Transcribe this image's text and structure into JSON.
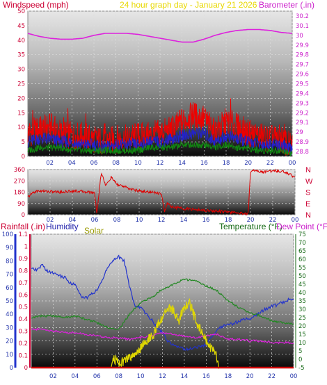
{
  "header": {
    "wind_label": "Windspeed (mph)",
    "title": "24 hour graph day - January 21 2026",
    "baro_label": "Barometer (.in)"
  },
  "colors": {
    "wind": "#ee0000",
    "gust": "#ff2020",
    "wind_avg": "#2222cc",
    "wind_low": "#118811",
    "barometer": "#dd22dd",
    "title": "#e8d800",
    "direction": "#dd0000",
    "rain": "#cc0000",
    "humidity": "#2233cc",
    "solar": "#e0d800",
    "temperature": "#228822",
    "dewpoint": "#dd22dd",
    "left_axis_red": "#cc0033",
    "right_axis_green": "#116611"
  },
  "bottom_labels": {
    "rain": "Rainfall (.in)",
    "humidity": "Humidity",
    "solar": "Solar",
    "temp": "Temperature (°F)",
    "dew": "Dew Point (°F)"
  },
  "chart_data": [
    {
      "type": "line",
      "panel": "wind-barometer",
      "x_ticks": [
        "02",
        "04",
        "06",
        "08",
        "10",
        "12",
        "14",
        "16",
        "18",
        "20",
        "22",
        "00"
      ],
      "y_left": {
        "label": "Windspeed (mph)",
        "ticks": [
          0,
          5,
          10,
          15,
          20,
          25,
          30,
          35,
          40,
          45,
          50
        ],
        "lim": [
          0,
          50
        ]
      },
      "y_right": {
        "label": "Barometer (.in)",
        "ticks": [
          "28.8",
          "28.9",
          "29",
          "29.1",
          "29.2",
          "29.3",
          "29.4",
          "29.5",
          "29.6",
          "29.7",
          "29.8",
          "29.9",
          "30",
          "30.1",
          "30.2"
        ],
        "lim": [
          28.75,
          30.25
        ]
      },
      "series": [
        {
          "name": "Windspeed (mph)",
          "axis": "left",
          "x": [
            0,
            1,
            2,
            3,
            4,
            5,
            6,
            7,
            8,
            9,
            10,
            11,
            12,
            13,
            14,
            15,
            16,
            17,
            18,
            19,
            20,
            21,
            22,
            23,
            24
          ],
          "y": [
            8,
            9,
            10,
            8,
            7,
            7,
            6,
            5,
            6,
            6,
            7,
            7,
            8,
            9,
            12,
            14,
            13,
            8,
            12,
            10,
            8,
            7,
            6,
            6,
            3
          ]
        },
        {
          "axis": "left",
          "x": [
            0,
            1,
            2,
            3,
            4,
            5,
            6,
            7,
            8,
            9,
            10,
            11,
            12,
            13,
            14,
            15,
            16,
            17,
            18,
            19,
            20,
            21,
            22,
            23,
            24
          ],
          "y": [
            5,
            6,
            6,
            5,
            5,
            4,
            4,
            3,
            4,
            4,
            4,
            5,
            5,
            6,
            7,
            8,
            8,
            5,
            7,
            6,
            5,
            4,
            4,
            4,
            2
          ]
        },
        {
          "axis": "left",
          "x": [
            0,
            1,
            2,
            3,
            4,
            5,
            6,
            7,
            8,
            9,
            10,
            11,
            12,
            13,
            14,
            15,
            16,
            17,
            18,
            19,
            20,
            21,
            22,
            23,
            24
          ],
          "y": [
            2,
            3,
            3,
            3,
            2,
            2,
            2,
            2,
            2,
            2,
            2,
            3,
            3,
            3,
            4,
            4,
            4,
            3,
            4,
            3,
            3,
            2,
            2,
            2,
            1
          ]
        },
        {
          "name": "Barometer (.in)",
          "axis": "right",
          "x": [
            0,
            1,
            2,
            3,
            4,
            5,
            6,
            7,
            8,
            9,
            10,
            11,
            12,
            13,
            14,
            15,
            16,
            17,
            18,
            19,
            20,
            21,
            22,
            23,
            24
          ],
          "y": [
            30.02,
            29.99,
            29.97,
            29.96,
            29.96,
            29.97,
            30.0,
            30.02,
            30.02,
            30.02,
            30.01,
            29.99,
            29.97,
            29.95,
            29.93,
            29.93,
            29.96,
            30.0,
            30.03,
            30.05,
            30.06,
            30.06,
            30.05,
            30.03,
            30.02
          ]
        }
      ]
    },
    {
      "type": "line",
      "panel": "wind-direction",
      "x_ticks": [
        "02",
        "04",
        "06",
        "08",
        "10",
        "12",
        "14",
        "16",
        "18",
        "20",
        "22",
        "00"
      ],
      "y_left": {
        "ticks": [
          0,
          90,
          180,
          270,
          360
        ],
        "lim": [
          0,
          360
        ]
      },
      "y_right": {
        "ticks": [
          "N",
          "W",
          "S",
          "E",
          "N"
        ]
      },
      "series": [
        {
          "x": [
            0,
            0.5,
            1,
            2,
            3,
            4,
            5,
            6,
            6.2,
            6.6,
            7,
            7.5,
            8,
            8.5,
            9,
            10,
            11,
            12,
            12.3,
            12.5,
            13,
            14,
            15,
            16,
            17,
            18,
            19,
            19.8,
            20,
            20.5,
            21,
            22,
            23,
            24
          ],
          "y": [
            140,
            180,
            190,
            185,
            180,
            190,
            185,
            175,
            10,
            340,
            230,
            300,
            240,
            230,
            210,
            190,
            180,
            170,
            20,
            90,
            60,
            50,
            40,
            35,
            30,
            20,
            15,
            5,
            350,
            355,
            340,
            350,
            345,
            300
          ]
        }
      ]
    },
    {
      "type": "line",
      "panel": "rain-humidity-solar-temp",
      "x_ticks": [
        "02",
        "04",
        "06",
        "08",
        "10",
        "12",
        "14",
        "16",
        "18",
        "20",
        "22",
        "00"
      ],
      "y_left": {
        "label": "Rainfall (.in)",
        "ticks": [
          0,
          0.1,
          0.2,
          0.3,
          0.4,
          0.5,
          0.6,
          0.7,
          0.8,
          0.9,
          1,
          1.1
        ],
        "lim": [
          0,
          1.1
        ]
      },
      "y_humidity": {
        "label": "Humidity",
        "ticks": [
          0,
          10,
          20,
          30,
          40,
          50,
          60,
          70,
          80,
          90,
          100
        ],
        "lim": [
          0,
          100
        ]
      },
      "y_right": {
        "label": "Temperature (°F) Dew Point (°F)",
        "ticks": [
          -5,
          0,
          5,
          10,
          15,
          20,
          25,
          30,
          35,
          40,
          45,
          50,
          55,
          60,
          65,
          70,
          75
        ],
        "lim": [
          -5,
          75
        ]
      },
      "series": [
        {
          "name": "Humidity",
          "axis": "humidity",
          "x": [
            0,
            0.5,
            1,
            1.5,
            2,
            2.5,
            3,
            3.5,
            4,
            4.5,
            5,
            5.5,
            6,
            6.5,
            7,
            7.5,
            8,
            8.5,
            9,
            9.5,
            10,
            10.5,
            11,
            11.5,
            12,
            12.5,
            13,
            13.5,
            14,
            14.5,
            15,
            15.5,
            16,
            16.5,
            17,
            17.5,
            18,
            18.5,
            19,
            19.5,
            20,
            20.5,
            21,
            21.5,
            22,
            22.5,
            23,
            23.5,
            24
          ],
          "y": [
            74,
            73,
            77,
            72,
            71,
            69,
            68,
            64,
            62,
            54,
            52,
            55,
            58,
            66,
            75,
            81,
            83,
            80,
            60,
            46,
            45,
            40,
            36,
            30,
            26,
            20,
            17,
            16,
            14,
            14,
            15,
            16,
            17,
            23,
            28,
            31,
            32,
            33,
            35,
            36,
            37,
            39,
            42,
            44,
            46,
            47,
            49,
            51,
            52
          ]
        },
        {
          "name": "Temperature (°F)",
          "axis": "right",
          "x": [
            0,
            1,
            2,
            3,
            4,
            5,
            6,
            7,
            8,
            9,
            10,
            11,
            12,
            13,
            14,
            15,
            16,
            17,
            18,
            19,
            20,
            21,
            22,
            23,
            24
          ],
          "y": [
            25,
            26,
            26,
            25,
            26,
            24,
            22,
            19,
            18,
            27,
            34,
            37,
            42,
            45,
            48,
            47,
            44,
            41,
            35,
            31,
            28,
            26,
            23,
            22,
            21
          ]
        },
        {
          "name": "Dew Point (°F)",
          "axis": "right",
          "x": [
            0,
            1,
            2,
            3,
            4,
            5,
            6,
            7,
            8,
            9,
            10,
            11,
            12,
            13,
            14,
            15,
            16,
            17,
            18,
            19,
            20,
            21,
            22,
            23,
            24
          ],
          "y": [
            18,
            18,
            17,
            16,
            16,
            15,
            14,
            13,
            13,
            12,
            13,
            14,
            16,
            15,
            14,
            13,
            14,
            15,
            12,
            12,
            11,
            11,
            10,
            10,
            10
          ]
        },
        {
          "name": "Solar",
          "axis": "right",
          "x": [
            0,
            7.3,
            7.5,
            8,
            8.5,
            9,
            9.5,
            10,
            10.5,
            11,
            11.5,
            12,
            12.5,
            13,
            13.5,
            14,
            14.5,
            15,
            15.5,
            16,
            16.5,
            17,
            17.2,
            24
          ],
          "y": [
            -5,
            -5,
            1,
            -2,
            -1,
            1,
            3,
            7,
            11,
            13,
            19,
            25,
            31,
            29,
            23,
            31,
            34,
            24,
            18,
            11,
            6,
            1,
            -5,
            -5
          ]
        },
        {
          "name": "Rainfall (.in)",
          "axis": "left",
          "x": [
            0,
            24
          ],
          "y": [
            0,
            0
          ]
        }
      ]
    }
  ]
}
